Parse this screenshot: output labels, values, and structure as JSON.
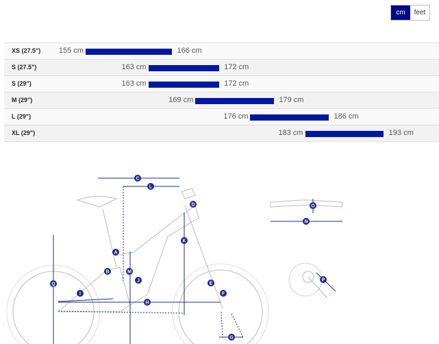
{
  "unit_toggle": {
    "options": [
      "cm",
      "feet"
    ],
    "selected": "cm"
  },
  "accent_color": "#0318a0",
  "size_chart": {
    "rows": [
      {
        "size": "XS (27.5\")",
        "min": 155,
        "max": 166,
        "min_label": "155 cm",
        "max_label": "166 cm"
      },
      {
        "size": "S (27.5\")",
        "min": 163,
        "max": 172,
        "min_label": "163 cm",
        "max_label": "172 cm"
      },
      {
        "size": "S (29\")",
        "min": 163,
        "max": 172,
        "min_label": "163 cm",
        "max_label": "172 cm"
      },
      {
        "size": "M (29\")",
        "min": 169,
        "max": 179,
        "min_label": "169 cm",
        "max_label": "179 cm"
      },
      {
        "size": "L (29\")",
        "min": 176,
        "max": 186,
        "min_label": "176 cm",
        "max_label": "186 cm"
      },
      {
        "size": "XL (29\")",
        "min": 183,
        "max": 193,
        "min_label": "183 cm",
        "max_label": "193 cm"
      }
    ]
  },
  "geometry_diagram": {
    "labels": [
      "A",
      "B",
      "C",
      "D",
      "E",
      "F",
      "G",
      "H",
      "I",
      "J",
      "K",
      "L",
      "M",
      "N",
      "O",
      "P",
      "Q"
    ]
  }
}
